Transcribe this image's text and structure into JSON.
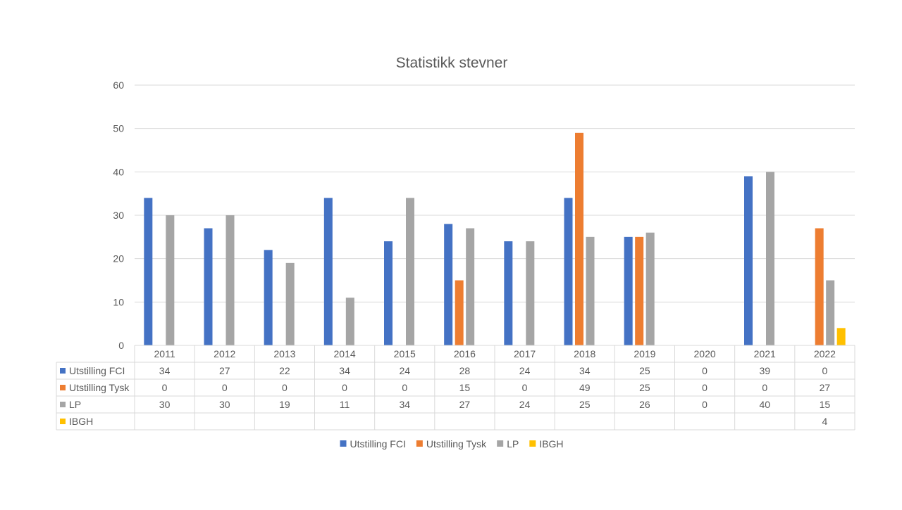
{
  "chart_data": {
    "type": "bar",
    "title": "Statistikk stevner",
    "categories": [
      "2011",
      "2012",
      "2013",
      "2014",
      "2015",
      "2016",
      "2017",
      "2018",
      "2019",
      "2020",
      "2021",
      "2022"
    ],
    "series": [
      {
        "name": "Utstilling FCI",
        "color": "#4472C4",
        "values": [
          34,
          27,
          22,
          34,
          24,
          28,
          24,
          34,
          25,
          0,
          39,
          0
        ]
      },
      {
        "name": "Utstilling Tysk",
        "color": "#ED7D31",
        "values": [
          0,
          0,
          0,
          0,
          0,
          15,
          0,
          49,
          25,
          0,
          0,
          27
        ]
      },
      {
        "name": "LP",
        "color": "#A5A5A5",
        "values": [
          30,
          30,
          19,
          11,
          34,
          27,
          24,
          25,
          26,
          0,
          40,
          15
        ]
      },
      {
        "name": "IBGH",
        "color": "#FFC000",
        "values": [
          null,
          null,
          null,
          null,
          null,
          null,
          null,
          null,
          null,
          null,
          null,
          4
        ]
      }
    ],
    "ylim": [
      0,
      60
    ],
    "yticks": [
      0,
      10,
      20,
      30,
      40,
      50,
      60
    ],
    "grid": true,
    "legend": "bottom",
    "data_table": true
  }
}
